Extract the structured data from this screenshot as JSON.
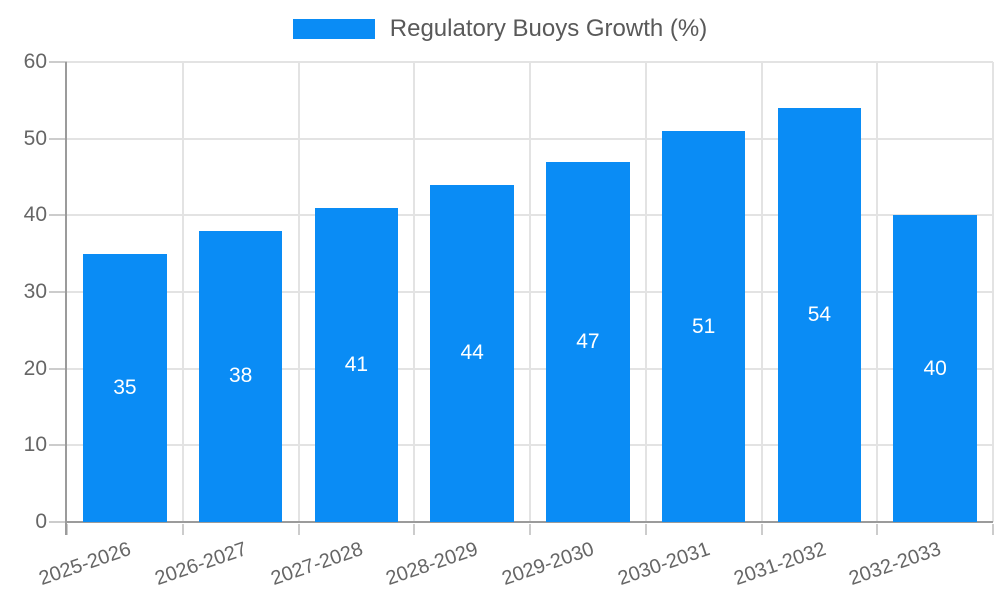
{
  "chart_data": {
    "type": "bar",
    "title": "Regulatory Buoys Growth (%)",
    "legend": {
      "label": "Regulatory Buoys Growth (%)",
      "position": "top"
    },
    "categories": [
      "2025-2026",
      "2026-2027",
      "2027-2028",
      "2028-2029",
      "2029-2030",
      "2030-2031",
      "2031-2032",
      "2032-2033"
    ],
    "values": [
      35,
      38,
      41,
      44,
      47,
      51,
      54,
      40
    ],
    "xlabel": "",
    "ylabel": "",
    "ylim": [
      0,
      60
    ],
    "yticks": [
      0,
      10,
      20,
      30,
      40,
      50,
      60
    ],
    "grid": true,
    "value_labels_shown": true,
    "colors": {
      "bar": "#0a8cf5",
      "value_label": "#ffffff",
      "axis_text": "#666666",
      "legend_text": "#595959",
      "gridline": "#e3e3e3",
      "axis_line": "#9b9b9b",
      "tick": "#cccccc",
      "background": "#ffffff"
    }
  }
}
